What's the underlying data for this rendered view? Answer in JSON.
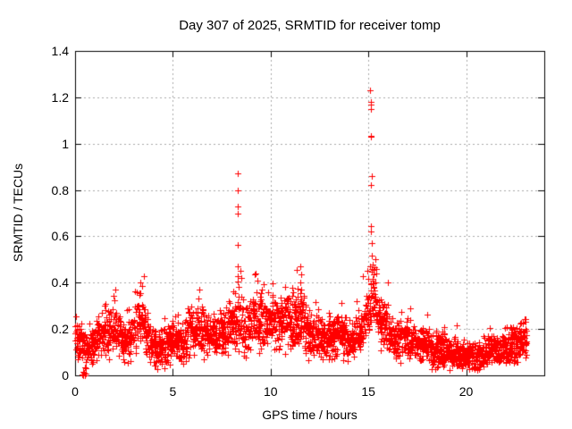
{
  "title": "Day 307 of 2025, SRMTID for receiver tomp",
  "chart_data": {
    "type": "scatter",
    "title": "Day 307 of 2025, SRMTID for receiver tomp",
    "xlabel": "GPS time / hours",
    "ylabel": "SRMTID / TECUs",
    "xlim": [
      0,
      24
    ],
    "ylim": [
      0,
      1.4
    ],
    "x_tick_values": [
      0,
      5,
      10,
      15,
      20
    ],
    "x_tick_labels": [
      "0",
      "5",
      "10",
      "15",
      "20"
    ],
    "y_tick_values": [
      0,
      0.2,
      0.4,
      0.6,
      0.8,
      1.0,
      1.2,
      1.4
    ],
    "y_tick_labels": [
      "0",
      "0.2",
      "0.4",
      "0.6",
      "0.8",
      "1",
      "1.2",
      "1.4"
    ],
    "grid": {
      "visible": true,
      "color": "#a8a8a8",
      "style": "dashed"
    },
    "background": "#ffffff",
    "border_color": "#000000",
    "marker": {
      "shape": "plus",
      "color": "#ff0000",
      "size": 7
    },
    "data_start_hour": 0.0,
    "data_end_hour": 23.1,
    "sample_interval_hours": 0.025,
    "seed": 2025307,
    "baseline_trend": [
      [
        0.0,
        0.16
      ],
      [
        0.3,
        0.14
      ],
      [
        0.6,
        0.115
      ],
      [
        0.9,
        0.13
      ],
      [
        1.2,
        0.18
      ],
      [
        1.5,
        0.155
      ],
      [
        1.8,
        0.19
      ],
      [
        2.0,
        0.22
      ],
      [
        2.2,
        0.18
      ],
      [
        2.5,
        0.14
      ],
      [
        2.8,
        0.17
      ],
      [
        3.1,
        0.21
      ],
      [
        3.35,
        0.25
      ],
      [
        3.6,
        0.19
      ],
      [
        3.9,
        0.13
      ],
      [
        4.2,
        0.115
      ],
      [
        4.5,
        0.12
      ],
      [
        4.8,
        0.145
      ],
      [
        5.1,
        0.16
      ],
      [
        5.4,
        0.14
      ],
      [
        5.7,
        0.16
      ],
      [
        6.0,
        0.19
      ],
      [
        6.3,
        0.21
      ],
      [
        6.6,
        0.17
      ],
      [
        6.9,
        0.18
      ],
      [
        7.2,
        0.165
      ],
      [
        7.5,
        0.19
      ],
      [
        7.8,
        0.21
      ],
      [
        8.1,
        0.22
      ],
      [
        8.35,
        0.24
      ],
      [
        8.6,
        0.2
      ],
      [
        8.9,
        0.215
      ],
      [
        9.2,
        0.25
      ],
      [
        9.5,
        0.24
      ],
      [
        9.8,
        0.22
      ],
      [
        10.1,
        0.24
      ],
      [
        10.4,
        0.21
      ],
      [
        10.7,
        0.25
      ],
      [
        11.0,
        0.22
      ],
      [
        11.3,
        0.24
      ],
      [
        11.55,
        0.25
      ],
      [
        11.8,
        0.2
      ],
      [
        12.1,
        0.165
      ],
      [
        12.4,
        0.185
      ],
      [
        12.7,
        0.15
      ],
      [
        13.0,
        0.16
      ],
      [
        13.3,
        0.17
      ],
      [
        13.6,
        0.19
      ],
      [
        13.9,
        0.15
      ],
      [
        14.2,
        0.14
      ],
      [
        14.5,
        0.18
      ],
      [
        14.8,
        0.24
      ],
      [
        15.0,
        0.29
      ],
      [
        15.2,
        0.33
      ],
      [
        15.45,
        0.3
      ],
      [
        15.7,
        0.24
      ],
      [
        15.95,
        0.19
      ],
      [
        16.2,
        0.16
      ],
      [
        16.5,
        0.14
      ],
      [
        16.8,
        0.16
      ],
      [
        17.1,
        0.15
      ],
      [
        17.4,
        0.13
      ],
      [
        17.7,
        0.12
      ],
      [
        18.0,
        0.13
      ],
      [
        18.3,
        0.11
      ],
      [
        18.6,
        0.12
      ],
      [
        18.9,
        0.11
      ],
      [
        19.2,
        0.1
      ],
      [
        19.5,
        0.085
      ],
      [
        19.8,
        0.08
      ],
      [
        20.1,
        0.09
      ],
      [
        20.4,
        0.075
      ],
      [
        20.7,
        0.09
      ],
      [
        21.0,
        0.1
      ],
      [
        21.3,
        0.11
      ],
      [
        21.6,
        0.095
      ],
      [
        21.9,
        0.11
      ],
      [
        22.2,
        0.12
      ],
      [
        22.5,
        0.125
      ],
      [
        22.8,
        0.14
      ],
      [
        23.1,
        0.16
      ]
    ],
    "outliers": [
      [
        8.3,
        0.87
      ],
      [
        8.32,
        0.8
      ],
      [
        8.31,
        0.73
      ],
      [
        8.33,
        0.7
      ],
      [
        8.3,
        0.565
      ],
      [
        8.32,
        0.47
      ],
      [
        8.34,
        0.43
      ],
      [
        8.31,
        0.405
      ],
      [
        8.35,
        0.38
      ],
      [
        8.45,
        0.45
      ],
      [
        8.5,
        0.42
      ],
      [
        15.1,
        1.23
      ],
      [
        15.12,
        1.18
      ],
      [
        15.11,
        1.17
      ],
      [
        15.12,
        1.15
      ],
      [
        15.13,
        1.035
      ],
      [
        15.11,
        1.03
      ],
      [
        15.16,
        0.86
      ],
      [
        15.13,
        0.82
      ],
      [
        15.14,
        0.645
      ],
      [
        15.15,
        0.62
      ],
      [
        15.18,
        0.57
      ],
      [
        15.19,
        0.515
      ],
      [
        15.22,
        0.48
      ],
      [
        15.35,
        0.5
      ],
      [
        15.42,
        0.46
      ],
      [
        14.93,
        0.45
      ],
      [
        11.52,
        0.47
      ],
      [
        11.55,
        0.435
      ],
      [
        11.5,
        0.4
      ],
      [
        11.56,
        0.37
      ],
      [
        11.53,
        0.355
      ],
      [
        9.25,
        0.44
      ],
      [
        9.32,
        0.41
      ],
      [
        6.35,
        0.37
      ],
      [
        3.35,
        0.4
      ],
      [
        2.05,
        0.37
      ],
      [
        1.95,
        0.345
      ]
    ],
    "zero_cluster": [
      [
        0.35,
        0.005
      ],
      [
        0.4,
        0.0
      ],
      [
        0.45,
        0.01
      ],
      [
        0.5,
        0.0
      ],
      [
        0.55,
        0.008
      ],
      [
        0.42,
        0.015
      ]
    ],
    "notable_features": {
      "max_value": 1.23,
      "max_at_hour": 15.1,
      "secondary_spike_value": 0.87,
      "secondary_spike_hour": 8.3,
      "minor_spike_value": 0.47,
      "minor_spike_hour": 11.5,
      "zero_cluster_hour": 0.4,
      "baseline_range": "0.05 - 0.35"
    }
  }
}
